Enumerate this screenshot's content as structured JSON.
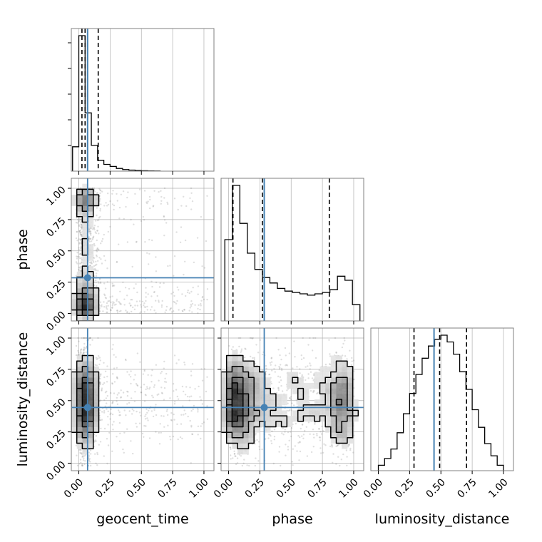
{
  "chart_data": {
    "type": "corner",
    "parameters": [
      "geocent_time",
      "phase",
      "luminosity_distance"
    ],
    "axis_labels": {
      "x": [
        "geocent_time",
        "phase",
        "luminosity_distance"
      ],
      "y": [
        "",
        "phase",
        "luminosity_distance"
      ]
    },
    "tick_values": [
      0.0,
      0.25,
      0.5,
      0.75,
      1.0
    ],
    "tick_labels": [
      "0.00",
      "0.25",
      "0.50",
      "0.75",
      "1.00"
    ],
    "ranges": {
      "geocent_time": [
        -0.06,
        1.08
      ],
      "phase": [
        -0.06,
        1.08
      ],
      "luminosity_distance": [
        -0.06,
        1.08
      ]
    },
    "truths": {
      "geocent_time": 0.07,
      "phase": 0.285,
      "luminosity_distance": 0.445
    },
    "quantiles": {
      "geocent_time": [
        0.025,
        0.05,
        0.155
      ],
      "phase": [
        0.035,
        0.27,
        0.805
      ],
      "luminosity_distance": [
        0.285,
        0.49,
        0.705
      ]
    },
    "histograms": {
      "geocent_time": {
        "bin_edges": [
          -0.05,
          0.0,
          0.05,
          0.1,
          0.15,
          0.2,
          0.25,
          0.3,
          0.35,
          0.4,
          0.45,
          0.5,
          0.55,
          0.6,
          0.65
        ],
        "counts": [
          0.18,
          1.0,
          0.43,
          0.19,
          0.08,
          0.05,
          0.035,
          0.02,
          0.012,
          0.008,
          0.005,
          0.003,
          0.002,
          0.001
        ]
      },
      "phase": {
        "bin_edges": [
          -0.03,
          0.03,
          0.09,
          0.15,
          0.21,
          0.27,
          0.33,
          0.39,
          0.45,
          0.51,
          0.57,
          0.63,
          0.69,
          0.75,
          0.81,
          0.87,
          0.93,
          0.99,
          1.05
        ],
        "counts": [
          0.6,
          1.0,
          0.72,
          0.5,
          0.38,
          0.32,
          0.28,
          0.24,
          0.22,
          0.21,
          0.2,
          0.19,
          0.2,
          0.21,
          0.23,
          0.33,
          0.3,
          0.12
        ]
      },
      "luminosity_distance": {
        "bin_edges": [
          0.0,
          0.05,
          0.1,
          0.15,
          0.2,
          0.25,
          0.3,
          0.35,
          0.4,
          0.45,
          0.5,
          0.55,
          0.6,
          0.65,
          0.7,
          0.75,
          0.8,
          0.85,
          0.9,
          0.95,
          1.0
        ],
        "counts": [
          0.04,
          0.09,
          0.16,
          0.28,
          0.42,
          0.57,
          0.71,
          0.83,
          0.92,
          0.97,
          1.0,
          0.95,
          0.86,
          0.73,
          0.6,
          0.45,
          0.32,
          0.2,
          0.11,
          0.04
        ]
      }
    },
    "scatter_style": {
      "point_color": "#7f7f7f",
      "point_opacity": 0.25
    },
    "colors": {
      "truth": "#4682b4",
      "line": "#000000",
      "grid": "#b0b0b0",
      "frame": "#808080"
    },
    "grid": true
  }
}
